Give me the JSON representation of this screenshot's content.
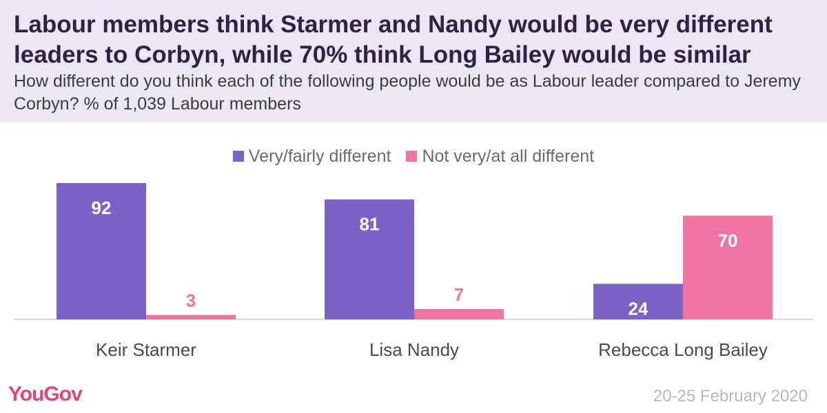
{
  "header": {
    "title": "Labour members think Starmer and Nandy would be very different leaders to Corbyn, while 70% think Long Bailey would be similar",
    "subtitle": "How different do you think each of the following people would be as Labour leader compared to Jeremy Corbyn? % of 1,039 Labour members"
  },
  "legend": {
    "items": [
      {
        "label": "Very/fairly different",
        "color": "#7b62c4"
      },
      {
        "label": "Not very/at all different",
        "color": "#f074a2"
      }
    ]
  },
  "chart_data": {
    "type": "bar",
    "title": "Labour members think Starmer and Nandy would be very different leaders to Corbyn, while 70% think Long Bailey would be similar",
    "subtitle": "How different do you think each of the following people would be as Labour leader compared to Jeremy Corbyn? % of 1,039 Labour members",
    "categories": [
      "Keir Starmer",
      "Lisa Nandy",
      "Rebecca Long Bailey"
    ],
    "series": [
      {
        "name": "Very/fairly different",
        "values": [
          92,
          81,
          24
        ],
        "color": "#7b62c4"
      },
      {
        "name": "Not very/at all different",
        "values": [
          3,
          7,
          70
        ],
        "color": "#f074a2"
      }
    ],
    "ylim": [
      0,
      92
    ],
    "legend_position": "top-center",
    "grid": false
  },
  "footer": {
    "logo": "YouGov",
    "date": "20-25 February 2020"
  }
}
